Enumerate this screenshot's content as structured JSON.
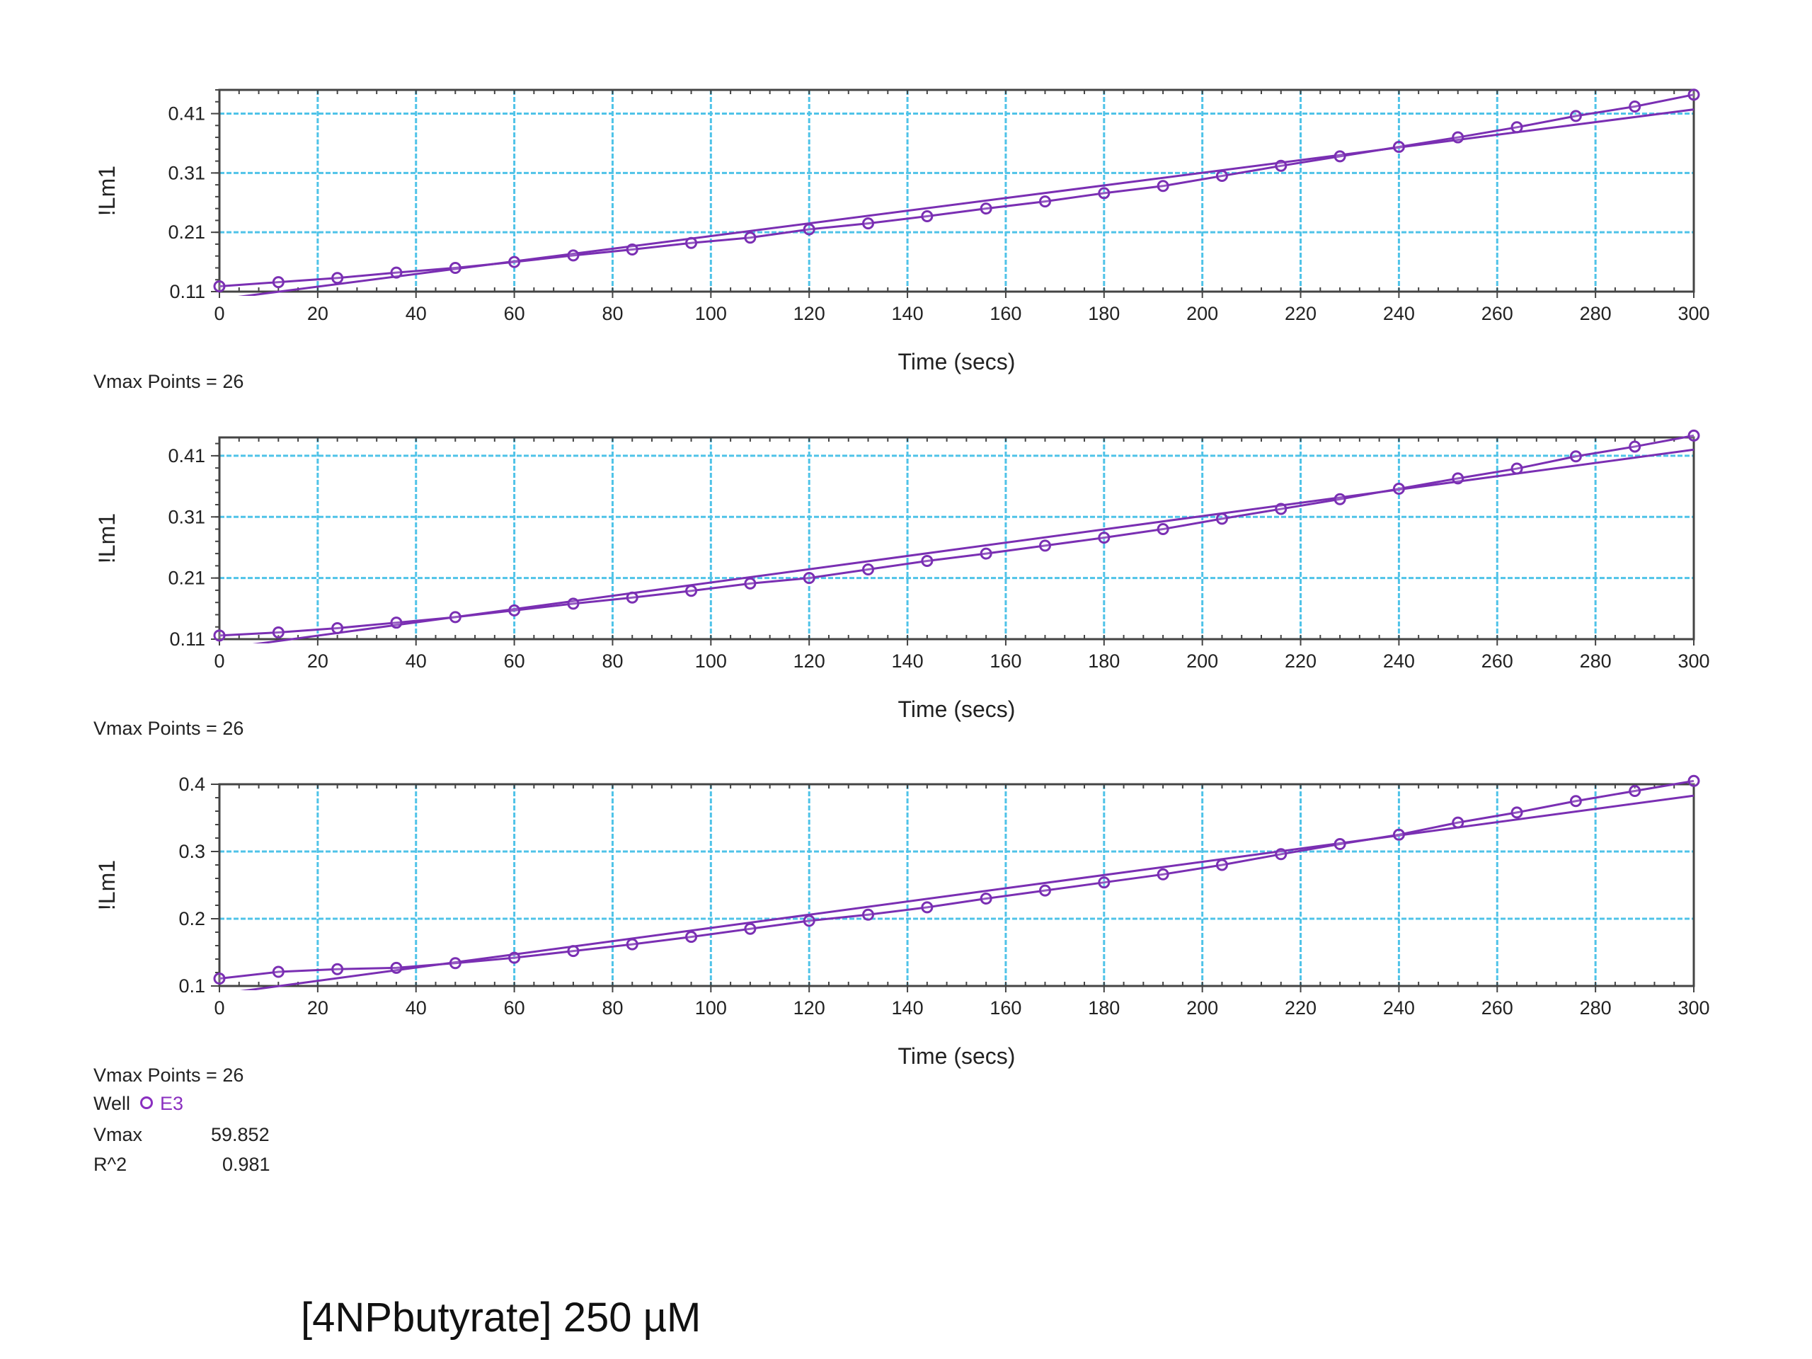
{
  "colors": {
    "grid": "#4fc3e8",
    "series": "#7a2fb3",
    "frame": "#444444"
  },
  "stats": {
    "vmax_points": [
      "Vmax Points = 26",
      "Vmax Points = 26",
      "Vmax Points = 26"
    ],
    "well_label": "Well",
    "well_id": "E3",
    "vmax_label": "Vmax",
    "vmax_value": "59.852",
    "r2_label": "R^2",
    "r2_value": "0.981"
  },
  "footer": {
    "label": "[4NPbutyrate] 250 µM"
  },
  "chart_data": [
    {
      "type": "scatter",
      "xlabel": "Time (secs)",
      "ylabel": "!Lm1",
      "xlim": [
        0,
        300
      ],
      "ylim": [
        0.11,
        0.45
      ],
      "xticks": [
        0,
        20,
        40,
        60,
        80,
        100,
        120,
        140,
        160,
        180,
        200,
        220,
        240,
        260,
        280,
        300
      ],
      "yticks": [
        0.11,
        0.21,
        0.31,
        0.41
      ],
      "ytick_labels": [
        "0.11",
        "0.21",
        "0.31",
        "0.41"
      ],
      "grid": true,
      "x": [
        0,
        12,
        24,
        36,
        48,
        60,
        72,
        84,
        96,
        108,
        120,
        132,
        144,
        156,
        168,
        180,
        192,
        204,
        216,
        228,
        240,
        252,
        264,
        276,
        288,
        300
      ],
      "y": [
        0.119,
        0.126,
        0.133,
        0.142,
        0.15,
        0.16,
        0.171,
        0.181,
        0.192,
        0.201,
        0.215,
        0.225,
        0.237,
        0.25,
        0.262,
        0.276,
        0.288,
        0.305,
        0.322,
        0.338,
        0.354,
        0.37,
        0.387,
        0.406,
        0.422,
        0.442
      ],
      "fit": [
        [
          0,
          0.097
        ],
        [
          300,
          0.417
        ]
      ]
    },
    {
      "type": "scatter",
      "xlabel": "Time (secs)",
      "ylabel": "!Lm1",
      "xlim": [
        0,
        300
      ],
      "ylim": [
        0.11,
        0.44
      ],
      "xticks": [
        0,
        20,
        40,
        60,
        80,
        100,
        120,
        140,
        160,
        180,
        200,
        220,
        240,
        260,
        280,
        300
      ],
      "yticks": [
        0.11,
        0.21,
        0.31,
        0.41
      ],
      "ytick_labels": [
        "0.11",
        "0.21",
        "0.31",
        "0.41"
      ],
      "grid": true,
      "x": [
        0,
        12,
        24,
        36,
        48,
        60,
        72,
        84,
        96,
        108,
        120,
        132,
        144,
        156,
        168,
        180,
        192,
        204,
        216,
        228,
        240,
        252,
        264,
        276,
        288,
        300
      ],
      "y": [
        0.116,
        0.121,
        0.128,
        0.137,
        0.146,
        0.157,
        0.168,
        0.178,
        0.189,
        0.201,
        0.21,
        0.224,
        0.238,
        0.25,
        0.263,
        0.276,
        0.29,
        0.307,
        0.323,
        0.339,
        0.356,
        0.373,
        0.389,
        0.409,
        0.425,
        0.443
      ],
      "fit": [
        [
          0,
          0.094
        ],
        [
          300,
          0.42
        ]
      ]
    },
    {
      "type": "scatter",
      "xlabel": "Time (secs)",
      "ylabel": "!Lm1",
      "xlim": [
        0,
        300
      ],
      "ylim": [
        0.1,
        0.4
      ],
      "xticks": [
        0,
        20,
        40,
        60,
        80,
        100,
        120,
        140,
        160,
        180,
        200,
        220,
        240,
        260,
        280,
        300
      ],
      "yticks": [
        0.1,
        0.2,
        0.3,
        0.4
      ],
      "ytick_labels": [
        "0.1",
        "0.2",
        "0.3",
        "0.4"
      ],
      "grid": true,
      "x": [
        0,
        12,
        24,
        36,
        48,
        60,
        72,
        84,
        96,
        108,
        120,
        132,
        144,
        156,
        168,
        180,
        192,
        204,
        216,
        228,
        240,
        252,
        264,
        276,
        288,
        300
      ],
      "y": [
        0.111,
        0.121,
        0.125,
        0.127,
        0.134,
        0.142,
        0.152,
        0.162,
        0.173,
        0.185,
        0.197,
        0.206,
        0.217,
        0.23,
        0.242,
        0.254,
        0.266,
        0.28,
        0.296,
        0.311,
        0.325,
        0.343,
        0.358,
        0.375,
        0.39,
        0.405
      ],
      "fit": [
        [
          0,
          0.088
        ],
        [
          300,
          0.383
        ]
      ]
    }
  ]
}
